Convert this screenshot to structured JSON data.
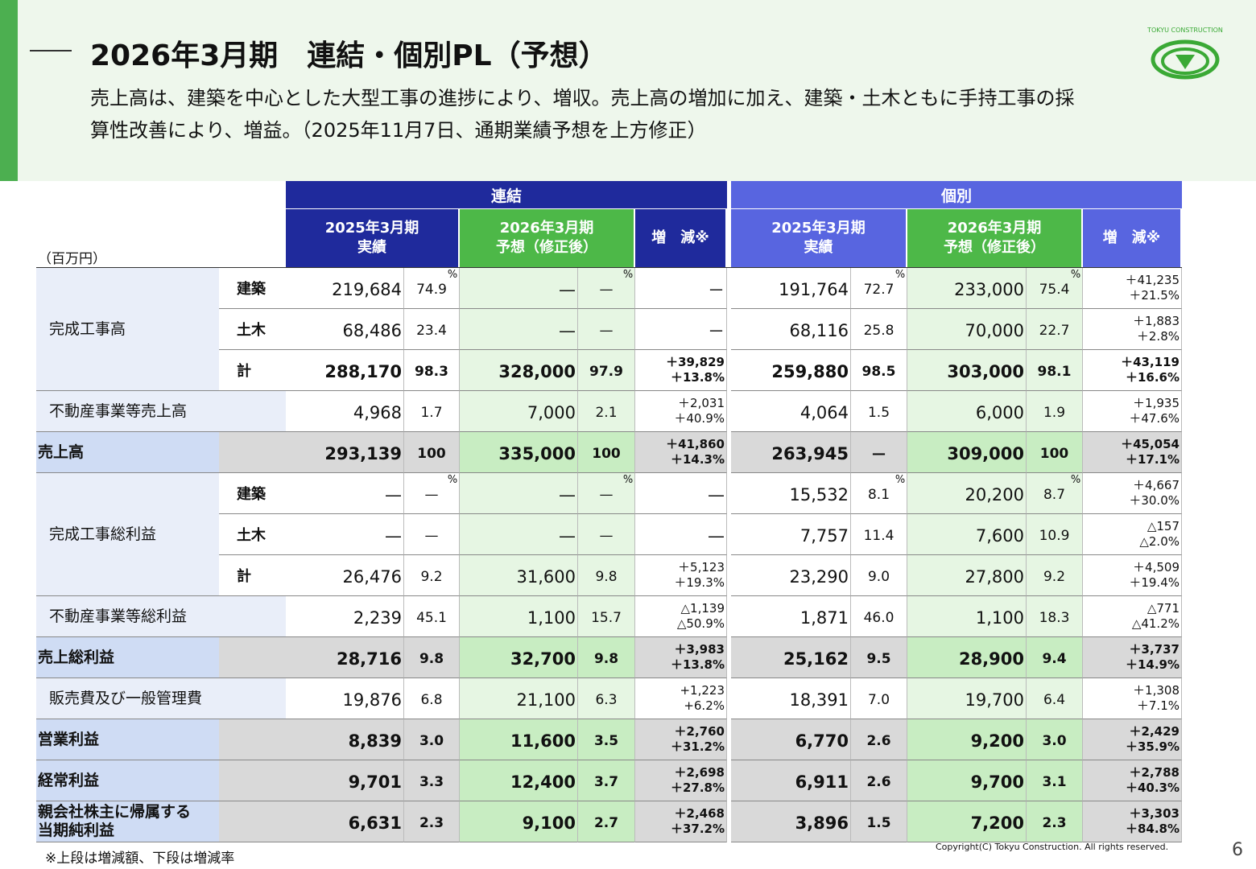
{
  "header": {
    "title": "2026年3月期　連結・個別PL（予想）",
    "description": [
      "売上高は、建築を中心とした大型工事の進捗により、増収。売上高の増加に加え、建築・土木ともに手持工事の採",
      "算性改善により、増益。（2025年11月7日、通期業績予想を上方修正）"
    ],
    "logo": "TOKYU CONSTRUCTION"
  },
  "table": {
    "unit": "（百万円）",
    "percent_mark": "%",
    "groups": [
      {
        "name": "連結",
        "columns": [
          [
            "2025年3月期",
            "実績"
          ],
          [
            "2026年3月期",
            "予想（修正後）"
          ],
          [
            "増　減※"
          ]
        ]
      },
      {
        "name": "個別",
        "columns": [
          [
            "2025年3月期",
            "実績"
          ],
          [
            "2026年3月期",
            "予想（修正後）"
          ],
          [
            "増　減※"
          ]
        ]
      }
    ],
    "rows": [
      {
        "label": [
          "完成工事高"
        ],
        "sub": "建築",
        "style": "plain",
        "marked": true,
        "cells": [
          "219,684",
          "74.9",
          "—",
          "—",
          "－",
          "191,764",
          "72.7",
          "233,000",
          "75.4",
          [
            "＋41,235",
            "＋21.5%"
          ]
        ]
      },
      {
        "sub": "土木",
        "style": "plain",
        "cells": [
          "68,486",
          "23.4",
          "—",
          "—",
          "－",
          "68,116",
          "25.8",
          "70,000",
          "22.7",
          [
            "＋1,883",
            "＋2.8%"
          ]
        ]
      },
      {
        "sub": "計",
        "style": "bold",
        "cells": [
          "288,170",
          "98.3",
          "328,000",
          "97.9",
          [
            "＋39,829",
            "＋13.8%"
          ],
          "259,880",
          "98.5",
          "303,000",
          "98.1",
          [
            "＋43,119",
            "＋16.6%"
          ]
        ]
      },
      {
        "label": [
          "不動産事業等売上高"
        ],
        "style": "plain",
        "cells": [
          "4,968",
          "1.7",
          "7,000",
          "2.1",
          [
            "＋2,031",
            "＋40.9%"
          ],
          "4,064",
          "1.5",
          "6,000",
          "1.9",
          [
            "＋1,935",
            "＋47.6%"
          ]
        ]
      },
      {
        "label": [
          "売上高"
        ],
        "style": "total",
        "cells": [
          "293,139",
          "100",
          "335,000",
          "100",
          [
            "＋41,860",
            "＋14.3%"
          ],
          "263,945",
          "—",
          "309,000",
          "100",
          [
            "＋45,054",
            "＋17.1%"
          ]
        ]
      },
      {
        "label": [
          "完成工事総利益"
        ],
        "sub": "建築",
        "style": "plain",
        "marked": true,
        "cells": [
          "—",
          "—",
          "—",
          "—",
          "—",
          "15,532",
          "8.1",
          "20,200",
          "8.7",
          [
            "＋4,667",
            "＋30.0%"
          ]
        ]
      },
      {
        "sub": "土木",
        "style": "plain",
        "cells": [
          "—",
          "—",
          "—",
          "—",
          "—",
          "7,757",
          "11.4",
          "7,600",
          "10.9",
          [
            "△157",
            "△2.0%"
          ]
        ]
      },
      {
        "sub": "計",
        "style": "plain",
        "cells": [
          "26,476",
          "9.2",
          "31,600",
          "9.8",
          [
            "＋5,123",
            "＋19.3%"
          ],
          "23,290",
          "9.0",
          "27,800",
          "9.2",
          [
            "＋4,509",
            "＋19.4%"
          ]
        ]
      },
      {
        "label": [
          "不動産事業等総利益"
        ],
        "style": "plain",
        "cells": [
          "2,239",
          "45.1",
          "1,100",
          "15.7",
          [
            "△1,139",
            "△50.9%"
          ],
          "1,871",
          "46.0",
          "1,100",
          "18.3",
          [
            "△771",
            "△41.2%"
          ]
        ]
      },
      {
        "label": [
          "売上総利益"
        ],
        "style": "total",
        "cells": [
          "28,716",
          "9.8",
          "32,700",
          "9.8",
          [
            "＋3,983",
            "＋13.8%"
          ],
          "25,162",
          "9.5",
          "28,900",
          "9.4",
          [
            "＋3,737",
            "＋14.9%"
          ]
        ]
      },
      {
        "label": [
          "販売費及び一般管理費"
        ],
        "style": "plain",
        "cells": [
          "19,876",
          "6.8",
          "21,100",
          "6.3",
          [
            "+1,223",
            "+6.2%"
          ],
          "18,391",
          "7.0",
          "19,700",
          "6.4",
          [
            "＋1,308",
            "＋7.1%"
          ]
        ]
      },
      {
        "label": [
          "営業利益"
        ],
        "style": "total",
        "cells": [
          "8,839",
          "3.0",
          "11,600",
          "3.5",
          [
            "＋2,760",
            "＋31.2%"
          ],
          "6,770",
          "2.6",
          "9,200",
          "3.0",
          [
            "＋2,429",
            "＋35.9%"
          ]
        ]
      },
      {
        "label": [
          "経常利益"
        ],
        "style": "total",
        "cells": [
          "9,701",
          "3.3",
          "12,400",
          "3.7",
          [
            "＋2,698",
            "＋27.8%"
          ],
          "6,911",
          "2.6",
          "9,700",
          "3.1",
          [
            "＋2,788",
            "＋40.3%"
          ]
        ]
      },
      {
        "label": [
          "親会社株主に帰属する",
          "当期純利益"
        ],
        "style": "total",
        "cells": [
          "6,631",
          "2.3",
          "9,100",
          "2.7",
          [
            "＋2,468",
            "＋37.2%"
          ],
          "3,896",
          "1.5",
          "7,200",
          "2.3",
          [
            "＋3,303",
            "＋84.8%"
          ]
        ]
      }
    ]
  },
  "footer": {
    "note": "※上段は増減額、下段は増減率",
    "copyright": "Copyright(C) Tokyu Construction. All rights reserved.",
    "page": "6"
  }
}
